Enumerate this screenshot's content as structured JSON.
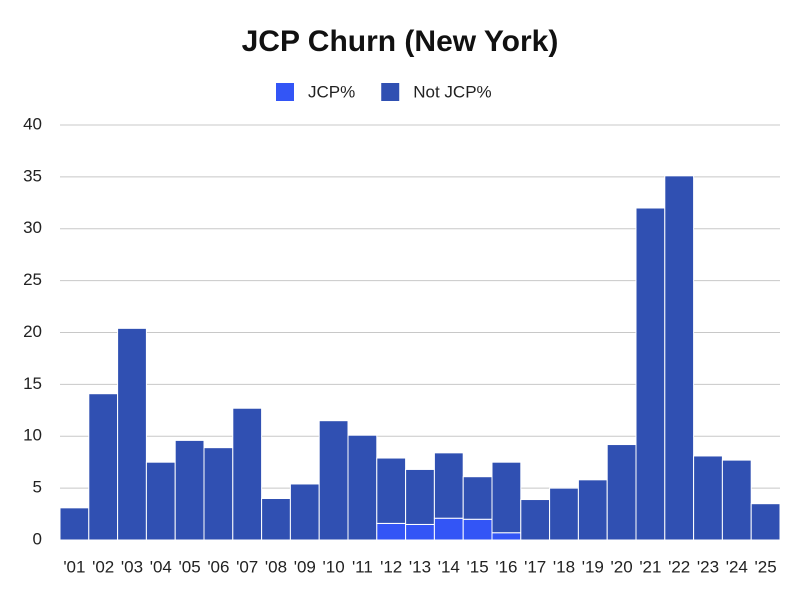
{
  "chart_data": {
    "type": "stacked_bar",
    "title": "JCP Churn (New York)",
    "categories": [
      "'01",
      "'02",
      "'03",
      "'04",
      "'05",
      "'06",
      "'07",
      "'08",
      "'09",
      "'10",
      "'11",
      "'12",
      "'13",
      "'14",
      "'15",
      "'16",
      "'17",
      "'18",
      "'19",
      "'20",
      "'21",
      "'22",
      "'23",
      "'24",
      "'25"
    ],
    "series": [
      {
        "name": "JCP%",
        "color": "#3355f6",
        "values": [
          0,
          0,
          0,
          0,
          0,
          0,
          0,
          0,
          0,
          0,
          0,
          1.6,
          1.5,
          2.1,
          2.0,
          0.7,
          0,
          0,
          0,
          0,
          0,
          0,
          0,
          0,
          0
        ]
      },
      {
        "name": "Not JCP%",
        "color": "#3050b2",
        "values": [
          3.1,
          14.1,
          20.4,
          7.5,
          9.6,
          8.9,
          12.7,
          4.0,
          5.4,
          11.5,
          10.1,
          6.3,
          5.3,
          6.3,
          4.1,
          6.8,
          3.9,
          5.0,
          5.8,
          9.2,
          32.0,
          35.1,
          8.1,
          7.7,
          3.5
        ]
      }
    ],
    "ylim": [
      0,
      40
    ],
    "yticks": [
      0,
      5,
      10,
      15,
      20,
      25,
      30,
      35,
      40
    ],
    "grid": true,
    "legend": "top"
  }
}
